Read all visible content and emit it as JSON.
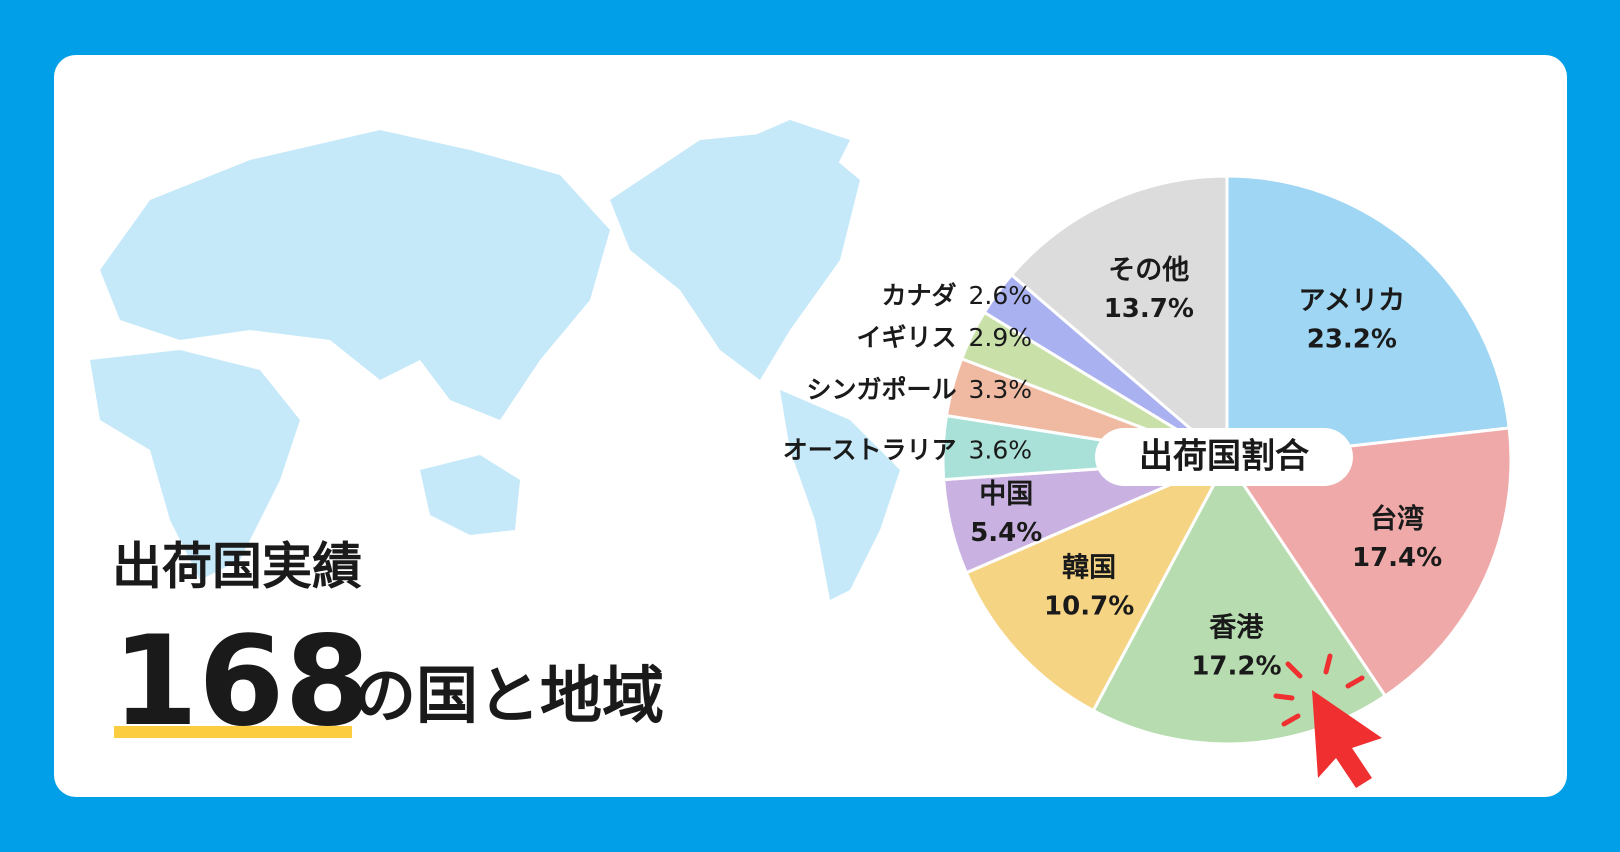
{
  "header": {
    "title": "出荷国実績",
    "count": 168,
    "count_suffix": "の国と地域"
  },
  "chart_data": {
    "type": "pie",
    "title": "出荷国割合",
    "categories": [
      "アメリカ",
      "台湾",
      "香港",
      "韓国",
      "中国",
      "オーストラリア",
      "シンガポール",
      "イギリス",
      "カナダ",
      "その他"
    ],
    "values": [
      23.2,
      17.4,
      17.2,
      10.7,
      5.4,
      3.6,
      3.3,
      2.9,
      2.6,
      13.7
    ],
    "value_labels": [
      "23.2%",
      "17.4%",
      "17.2%",
      "10.7%",
      "5.4%",
      "3.6%",
      "3.3%",
      "2.9%",
      "2.6%",
      "13.7%"
    ],
    "colors": [
      "#9fd6f4",
      "#efa9a9",
      "#b6dcaf",
      "#f5d483",
      "#c9b1e1",
      "#a9e1d9",
      "#f0b9a1",
      "#c9e1a9",
      "#a9b1f1",
      "#dcdcdc"
    ]
  }
}
